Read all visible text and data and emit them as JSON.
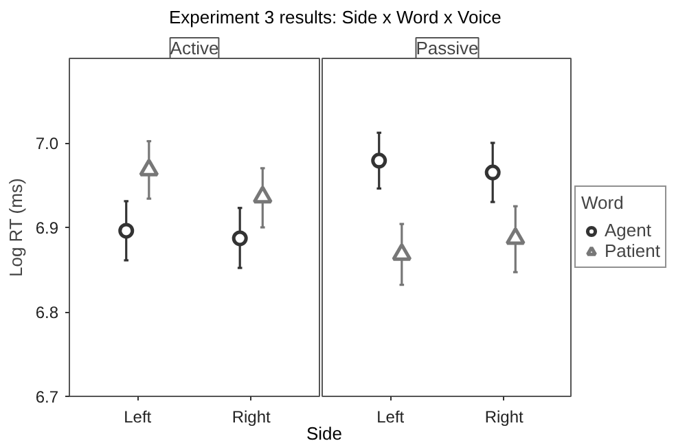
{
  "chart_data": [
    {
      "type": "scatter",
      "title": "Experiment 3 results: Side x Word x Voice",
      "subtitle": "Active",
      "xlabel": "Side",
      "ylabel": "Log RT (ms)",
      "categories": [
        "Left",
        "Right"
      ],
      "ylim": [
        6.7,
        7.1
      ],
      "yticks": [
        6.7,
        6.8,
        6.9,
        {
          "value": 7,
          "label": "7.0"
        }
      ],
      "legend": false,
      "series": [
        {
          "color": "#333333",
          "marker": "circle",
          "values": [
            6.896,
            6.887
          ],
          "errors": [
            [
              6.861,
              6.931
            ],
            [
              6.852,
              6.923
            ]
          ]
        },
        {
          "color": "#777777",
          "marker": "triangle",
          "values": [
            6.968,
            6.936
          ],
          "errors": [
            [
              6.934,
              7.002
            ],
            [
              6.9,
              6.97
            ]
          ]
        }
      ]
    },
    {
      "type": "scatter",
      "subtitle": "Passive",
      "categories": [
        "Left",
        "Right"
      ],
      "ylim": [
        6.7,
        7.1
      ],
      "yticks": [
        6.7,
        6.8,
        6.9,
        7.0
      ],
      "tick_labels": "x",
      "legend": "right",
      "legend_title": "Word",
      "series": [
        {
          "name": "Agent",
          "color": "#333333",
          "marker": "circle",
          "values": [
            6.979,
            6.965
          ],
          "errors": [
            [
              6.946,
              7.012
            ],
            [
              6.93,
              7.0
            ]
          ]
        },
        {
          "name": "Patient",
          "color": "#777777",
          "marker": "triangle",
          "values": [
            6.868,
            6.887
          ],
          "errors": [
            [
              6.832,
              6.904
            ],
            [
              6.847,
              6.925
            ]
          ]
        }
      ]
    }
  ]
}
